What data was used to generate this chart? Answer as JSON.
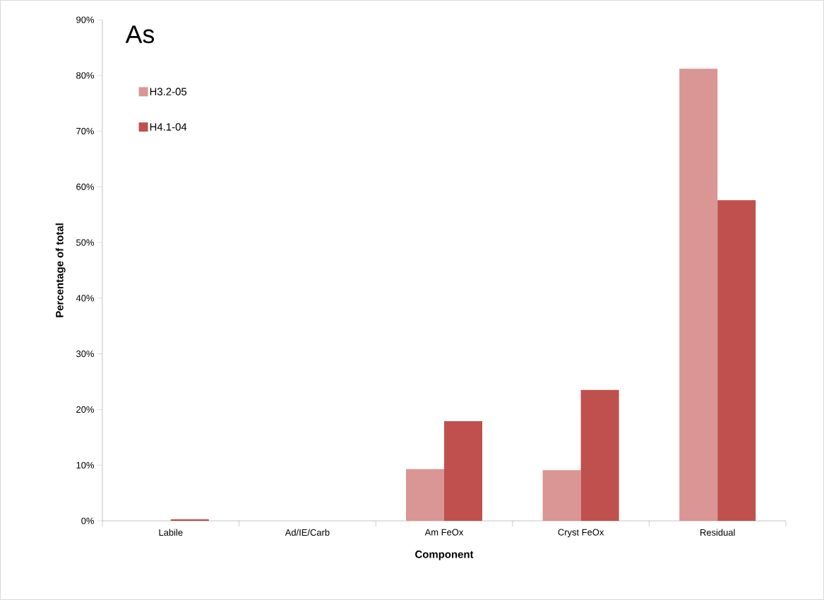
{
  "chart_data": {
    "type": "bar",
    "title": "As",
    "xlabel": "Component",
    "ylabel": "Percentage of total",
    "categories": [
      "Labile",
      "Ad/IE/Carb",
      "Am FeOx",
      "Cryst FeOx",
      "Residual"
    ],
    "series": [
      {
        "name": "H3.2-05",
        "color": "#d99694",
        "values": [
          0,
          0,
          9.3,
          9.1,
          81.2
        ]
      },
      {
        "name": "H4.1-04",
        "color": "#c0504d",
        "values": [
          0.3,
          0,
          17.9,
          23.5,
          57.6
        ]
      }
    ],
    "ylim": [
      0,
      90
    ],
    "yticks": [
      {
        "value": 0,
        "label": "0%"
      },
      {
        "value": 10,
        "label": "10%"
      },
      {
        "value": 20,
        "label": "20%"
      },
      {
        "value": 30,
        "label": "30%"
      },
      {
        "value": 40,
        "label": "40%"
      },
      {
        "value": 50,
        "label": "50%"
      },
      {
        "value": 60,
        "label": "60%"
      },
      {
        "value": 70,
        "label": "70%"
      },
      {
        "value": 80,
        "label": "80%"
      },
      {
        "value": 90,
        "label": "90%"
      }
    ],
    "legend": "top left",
    "grid": false
  }
}
